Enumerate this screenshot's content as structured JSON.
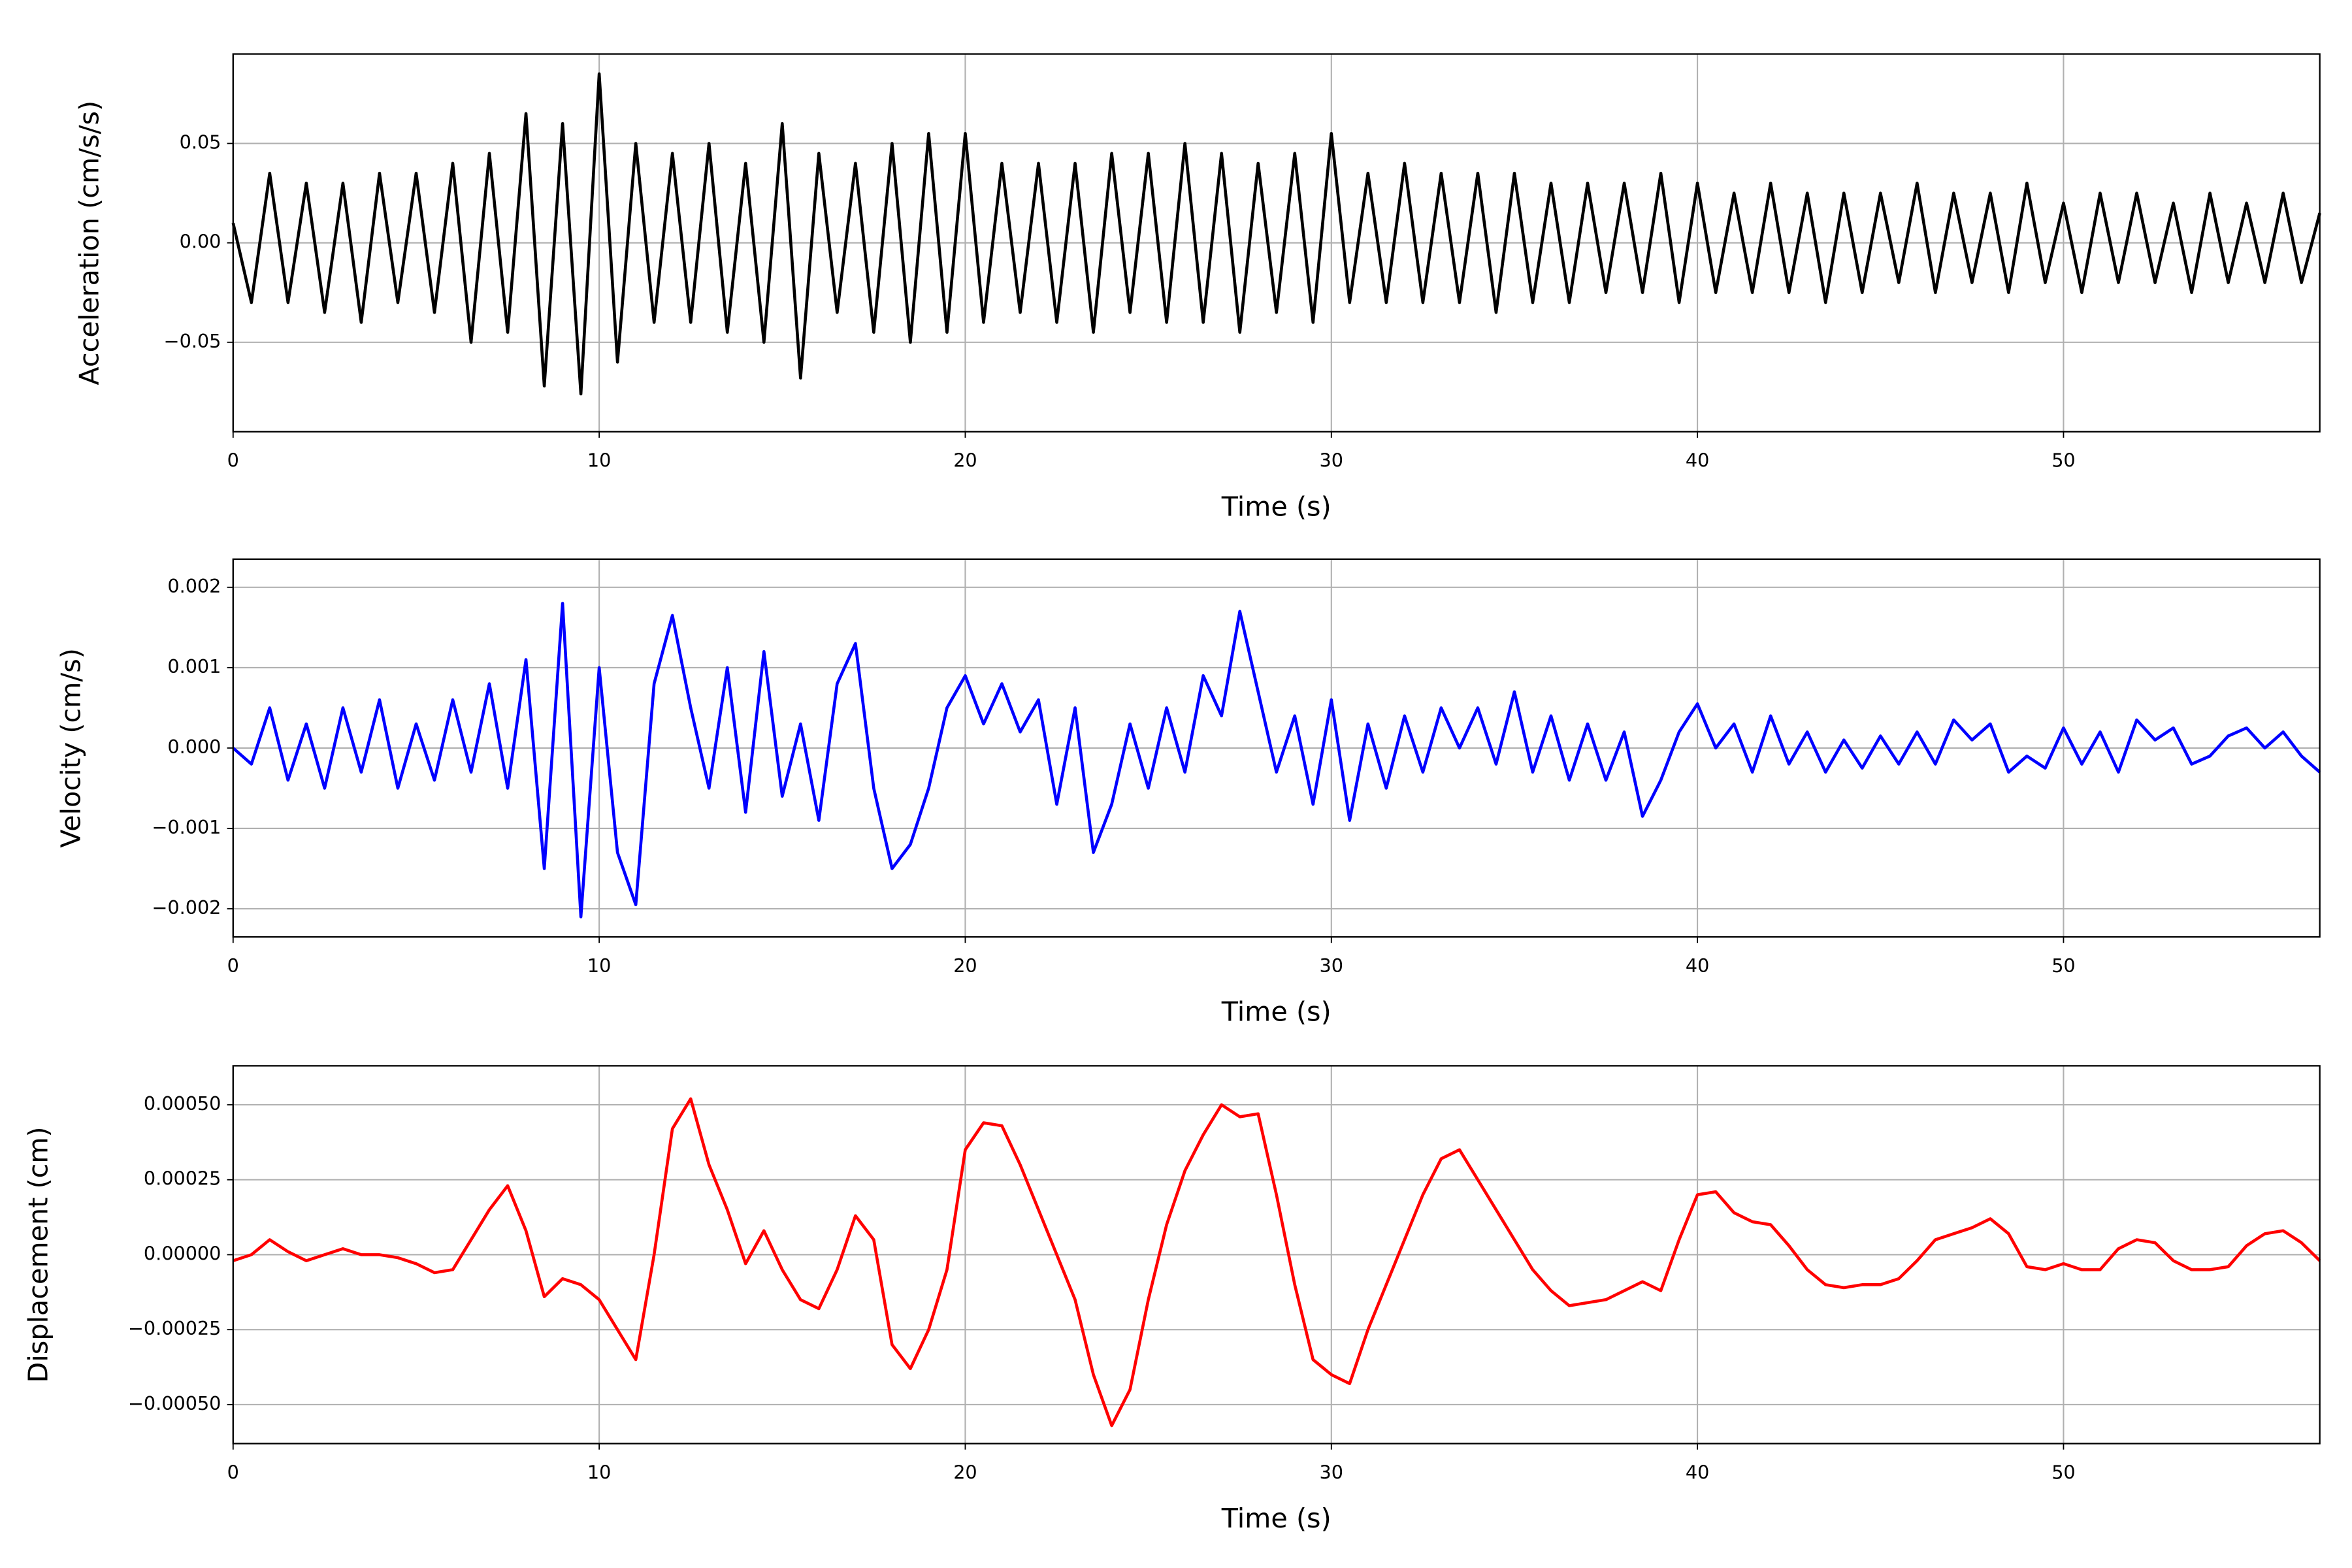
{
  "chart_data": [
    {
      "type": "line",
      "ylabel": "Acceleration (cm/s/s)",
      "xlabel": "Time (s)",
      "grid": true,
      "xlim": [
        0,
        57
      ],
      "xticks": [
        0,
        10,
        20,
        30,
        40,
        50
      ],
      "ylim": [
        -0.095,
        0.095
      ],
      "yticks": [
        {
          "value": -0.05,
          "label": "−0.05"
        },
        {
          "value": 0,
          "label": "0.00"
        },
        0.05
      ],
      "x": [
        0,
        0.5,
        1,
        1.5,
        2,
        2.5,
        3,
        3.5,
        4,
        4.5,
        5,
        5.5,
        6,
        6.5,
        7,
        7.5,
        8,
        8.5,
        9,
        9.5,
        10,
        10.5,
        11,
        11.5,
        12,
        12.5,
        13,
        13.5,
        14,
        14.5,
        15,
        15.5,
        16,
        16.5,
        17,
        17.5,
        18,
        18.5,
        19,
        19.5,
        20,
        20.5,
        21,
        21.5,
        22,
        22.5,
        23,
        23.5,
        24,
        24.5,
        25,
        25.5,
        26,
        26.5,
        27,
        27.5,
        28,
        28.5,
        29,
        29.5,
        30,
        30.5,
        31,
        31.5,
        32,
        32.5,
        33,
        33.5,
        34,
        34.5,
        35,
        35.5,
        36,
        36.5,
        37,
        37.5,
        38,
        38.5,
        39,
        39.5,
        40,
        40.5,
        41,
        41.5,
        42,
        42.5,
        43,
        43.5,
        44,
        44.5,
        45,
        45.5,
        46,
        46.5,
        47,
        47.5,
        48,
        48.5,
        49,
        49.5,
        50,
        50.5,
        51,
        51.5,
        52,
        52.5,
        53,
        53.5,
        54,
        54.5,
        55,
        55.5,
        56,
        56.5,
        57
      ],
      "series": [
        {
          "color": "#000000",
          "values": [
            0.01,
            -0.03,
            0.035,
            -0.03,
            0.03,
            -0.035,
            0.03,
            -0.04,
            0.035,
            -0.03,
            0.035,
            -0.035,
            0.04,
            -0.05,
            0.045,
            -0.045,
            0.065,
            -0.072,
            0.06,
            -0.076,
            0.085,
            -0.06,
            0.05,
            -0.04,
            0.045,
            -0.04,
            0.05,
            -0.045,
            0.04,
            -0.05,
            0.06,
            -0.068,
            0.045,
            -0.035,
            0.04,
            -0.045,
            0.05,
            -0.05,
            0.055,
            -0.045,
            0.055,
            -0.04,
            0.04,
            -0.035,
            0.04,
            -0.04,
            0.04,
            -0.045,
            0.045,
            -0.035,
            0.045,
            -0.04,
            0.05,
            -0.04,
            0.045,
            -0.045,
            0.04,
            -0.035,
            0.045,
            -0.04,
            0.055,
            -0.03,
            0.035,
            -0.03,
            0.04,
            -0.03,
            0.035,
            -0.03,
            0.035,
            -0.035,
            0.035,
            -0.03,
            0.03,
            -0.03,
            0.03,
            -0.025,
            0.03,
            -0.025,
            0.035,
            -0.03,
            0.03,
            -0.025,
            0.025,
            -0.025,
            0.03,
            -0.025,
            0.025,
            -0.03,
            0.025,
            -0.025,
            0.025,
            -0.02,
            0.03,
            -0.025,
            0.025,
            -0.02,
            0.025,
            -0.025,
            0.03,
            -0.02,
            0.02,
            -0.025,
            0.025,
            -0.02,
            0.025,
            -0.02,
            0.02,
            -0.025,
            0.025,
            -0.02,
            0.02,
            -0.02,
            0.025,
            -0.02,
            0.015
          ]
        }
      ]
    },
    {
      "type": "line",
      "ylabel": "Velocity (cm/s)",
      "xlabel": "Time (s)",
      "grid": true,
      "xlim": [
        0,
        57
      ],
      "xticks": [
        0,
        10,
        20,
        30,
        40,
        50
      ],
      "ylim": [
        -0.00235,
        0.00235
      ],
      "yticks": [
        {
          "value": -0.002,
          "label": "−0.002"
        },
        {
          "value": -0.001,
          "label": "−0.001"
        },
        {
          "value": 0,
          "label": "0.000"
        },
        0.001,
        0.002
      ],
      "x": [
        0,
        0.5,
        1,
        1.5,
        2,
        2.5,
        3,
        3.5,
        4,
        4.5,
        5,
        5.5,
        6,
        6.5,
        7,
        7.5,
        8,
        8.5,
        9,
        9.5,
        10,
        10.5,
        11,
        11.5,
        12,
        12.5,
        13,
        13.5,
        14,
        14.5,
        15,
        15.5,
        16,
        16.5,
        17,
        17.5,
        18,
        18.5,
        19,
        19.5,
        20,
        20.5,
        21,
        21.5,
        22,
        22.5,
        23,
        23.5,
        24,
        24.5,
        25,
        25.5,
        26,
        26.5,
        27,
        27.5,
        28,
        28.5,
        29,
        29.5,
        30,
        30.5,
        31,
        31.5,
        32,
        32.5,
        33,
        33.5,
        34,
        34.5,
        35,
        35.5,
        36,
        36.5,
        37,
        37.5,
        38,
        38.5,
        39,
        39.5,
        40,
        40.5,
        41,
        41.5,
        42,
        42.5,
        43,
        43.5,
        44,
        44.5,
        45,
        45.5,
        46,
        46.5,
        47,
        47.5,
        48,
        48.5,
        49,
        49.5,
        50,
        50.5,
        51,
        51.5,
        52,
        52.5,
        53,
        53.5,
        54,
        54.5,
        55,
        55.5,
        56,
        56.5,
        57
      ],
      "series": [
        {
          "color": "#0000ff",
          "values": [
            0,
            -0.0002,
            0.0005,
            -0.0004,
            0.0003,
            -0.0005,
            0.0005,
            -0.0003,
            0.0006,
            -0.0005,
            0.0003,
            -0.0004,
            0.0006,
            -0.0003,
            0.0008,
            -0.0005,
            0.0011,
            -0.0015,
            0.0018,
            -0.0021,
            0.001,
            -0.0013,
            -0.00195,
            0.0008,
            0.00165,
            0.0005,
            -0.0005,
            0.001,
            -0.0008,
            0.0012,
            -0.0006,
            0.0003,
            -0.0009,
            0.0008,
            0.0013,
            -0.0005,
            -0.0015,
            -0.0012,
            -0.0005,
            0.0005,
            0.0009,
            0.0003,
            0.0008,
            0.0002,
            0.0006,
            -0.0007,
            0.0005,
            -0.0013,
            -0.0007,
            0.0003,
            -0.0005,
            0.0005,
            -0.0003,
            0.0009,
            0.0004,
            0.0017,
            0.0007,
            -0.0003,
            0.0004,
            -0.0007,
            0.0006,
            -0.0009,
            0.0003,
            -0.0005,
            0.0004,
            -0.0003,
            0.0005,
            0,
            0.0005,
            -0.0002,
            0.0007,
            -0.0003,
            0.0004,
            -0.0004,
            0.0003,
            -0.0004,
            0.0002,
            -0.00085,
            -0.0004,
            0.0002,
            0.00055,
            0,
            0.0003,
            -0.0003,
            0.0004,
            -0.0002,
            0.0002,
            -0.0003,
            0.0001,
            -0.00025,
            0.00015,
            -0.0002,
            0.0002,
            -0.0002,
            0.00035,
            0.0001,
            0.0003,
            -0.0003,
            -0.0001,
            -0.00025,
            0.00025,
            -0.0002,
            0.0002,
            -0.0003,
            0.00035,
            0.0001,
            0.00025,
            -0.0002,
            -0.0001,
            0.00015,
            0.00025,
            0,
            0.0002,
            -0.0001,
            -0.0003
          ]
        }
      ]
    },
    {
      "type": "line",
      "ylabel": "Displacement (cm)",
      "xlabel": "Time (s)",
      "grid": true,
      "xlim": [
        0,
        57
      ],
      "xticks": [
        0,
        10,
        20,
        30,
        40,
        50
      ],
      "ylim": [
        -0.00063,
        0.00063
      ],
      "yticks": [
        {
          "value": -0.0005,
          "label": "−0.00050"
        },
        {
          "value": -0.00025,
          "label": "−0.00025"
        },
        {
          "value": 0,
          "label": "0.00000"
        },
        0.00025,
        {
          "value": 0.0005,
          "label": "0.00050"
        }
      ],
      "x": [
        0,
        0.5,
        1,
        1.5,
        2,
        2.5,
        3,
        3.5,
        4,
        4.5,
        5,
        5.5,
        6,
        6.5,
        7,
        7.5,
        8,
        8.5,
        9,
        9.5,
        10,
        10.5,
        11,
        11.5,
        12,
        12.5,
        13,
        13.5,
        14,
        14.5,
        15,
        15.5,
        16,
        16.5,
        17,
        17.5,
        18,
        18.5,
        19,
        19.5,
        20,
        20.5,
        21,
        21.5,
        22,
        22.5,
        23,
        23.5,
        24,
        24.5,
        25,
        25.5,
        26,
        26.5,
        27,
        27.5,
        28,
        28.5,
        29,
        29.5,
        30,
        30.5,
        31,
        31.5,
        32,
        32.5,
        33,
        33.5,
        34,
        34.5,
        35,
        35.5,
        36,
        36.5,
        37,
        37.5,
        38,
        38.5,
        39,
        39.5,
        40,
        40.5,
        41,
        41.5,
        42,
        42.5,
        43,
        43.5,
        44,
        44.5,
        45,
        45.5,
        46,
        46.5,
        47,
        47.5,
        48,
        48.5,
        49,
        49.5,
        50,
        50.5,
        51,
        51.5,
        52,
        52.5,
        53,
        53.5,
        54,
        54.5,
        55,
        55.5,
        56,
        56.5,
        57
      ],
      "series": [
        {
          "color": "#ff0000",
          "values": [
            -2e-05,
            0,
            5e-05,
            1e-05,
            -2e-05,
            0,
            2e-05,
            0,
            0,
            -1e-05,
            -3e-05,
            -6e-05,
            -5e-05,
            5e-05,
            0.00015,
            0.00023,
            8e-05,
            -0.00014,
            -8e-05,
            -0.0001,
            -0.00015,
            -0.00025,
            -0.00035,
            0,
            0.00042,
            0.00052,
            0.0003,
            0.00015,
            -3e-05,
            8e-05,
            -5e-05,
            -0.00015,
            -0.00018,
            -5e-05,
            0.00013,
            5e-05,
            -0.0003,
            -0.00038,
            -0.00025,
            -5e-05,
            0.00035,
            0.00044,
            0.00043,
            0.0003,
            0.00015,
            0,
            -0.00015,
            -0.0004,
            -0.00057,
            -0.00045,
            -0.00015,
            0.0001,
            0.00028,
            0.0004,
            0.0005,
            0.00046,
            0.00047,
            0.0002,
            -0.0001,
            -0.00035,
            -0.0004,
            -0.00043,
            -0.00025,
            -0.0001,
            5e-05,
            0.0002,
            0.00032,
            0.00035,
            0.00025,
            0.00015,
            5e-05,
            -5e-05,
            -0.00012,
            -0.00017,
            -0.00016,
            -0.00015,
            -0.00012,
            -9e-05,
            -0.00012,
            5e-05,
            0.0002,
            0.00021,
            0.00014,
            0.00011,
            0.0001,
            3e-05,
            -5e-05,
            -0.0001,
            -0.00011,
            -0.0001,
            -0.0001,
            -8e-05,
            -2e-05,
            5e-05,
            7e-05,
            9e-05,
            0.00012,
            7e-05,
            -4e-05,
            -5e-05,
            -3e-05,
            -5e-05,
            -5e-05,
            2e-05,
            5e-05,
            4e-05,
            -2e-05,
            -5e-05,
            -5e-05,
            -4e-05,
            3e-05,
            7e-05,
            8e-05,
            4e-05,
            -2e-05
          ]
        }
      ]
    }
  ]
}
